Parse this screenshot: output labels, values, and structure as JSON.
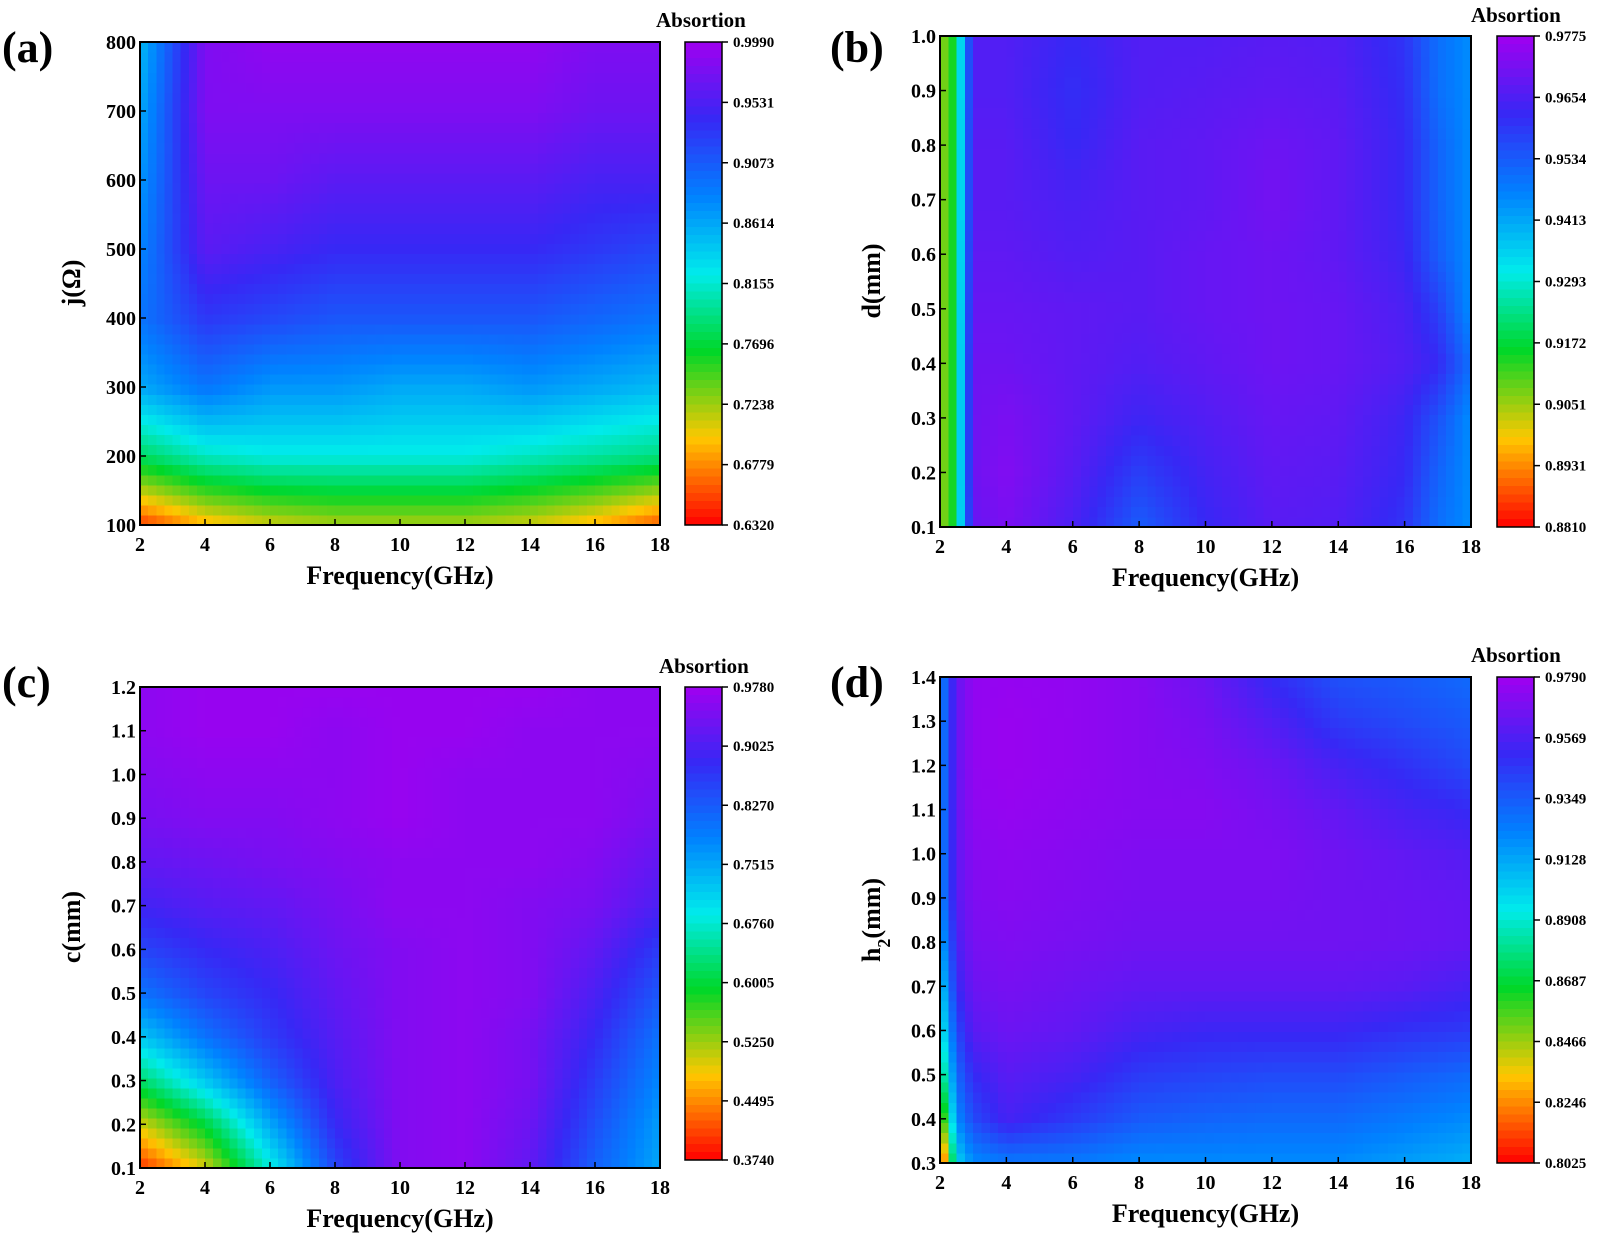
{
  "chart_data": [
    {
      "type": "heatmap",
      "panel_label": "(a)",
      "xlabel": "Frequency(GHz)",
      "ylabel": "j(Ω)",
      "xlim": [
        2,
        18
      ],
      "ylim": [
        100,
        800
      ],
      "x_ticks": [
        "2",
        "4",
        "6",
        "8",
        "10",
        "12",
        "14",
        "16",
        "18"
      ],
      "y_ticks": [
        "100",
        "200",
        "300",
        "400",
        "500",
        "600",
        "700",
        "800"
      ],
      "colorbar": {
        "title": "Absortion",
        "range": [
          0.632,
          0.999
        ],
        "ticks": [
          "0.6320",
          "0.6779",
          "0.7238",
          "0.7696",
          "0.8155",
          "0.8614",
          "0.9073",
          "0.9531",
          "0.9990"
        ]
      },
      "grid_x": [
        2,
        4,
        6,
        8,
        10,
        12,
        14,
        16,
        18
      ],
      "grid_y": [
        100,
        200,
        300,
        400,
        500,
        600,
        700,
        800
      ],
      "z": [
        [
          0.65,
          0.69,
          0.71,
          0.72,
          0.72,
          0.72,
          0.71,
          0.69,
          0.66
        ],
        [
          0.78,
          0.81,
          0.82,
          0.82,
          0.82,
          0.82,
          0.81,
          0.8,
          0.79
        ],
        [
          0.86,
          0.89,
          0.87,
          0.87,
          0.86,
          0.86,
          0.87,
          0.86,
          0.85
        ],
        [
          0.89,
          0.93,
          0.92,
          0.91,
          0.91,
          0.91,
          0.91,
          0.9,
          0.89
        ],
        [
          0.88,
          0.96,
          0.95,
          0.94,
          0.94,
          0.94,
          0.94,
          0.93,
          0.92
        ],
        [
          0.87,
          0.97,
          0.97,
          0.96,
          0.96,
          0.96,
          0.96,
          0.95,
          0.95
        ],
        [
          0.86,
          0.98,
          0.98,
          0.98,
          0.98,
          0.98,
          0.98,
          0.97,
          0.97
        ],
        [
          0.85,
          0.98,
          0.99,
          0.99,
          0.99,
          0.99,
          0.99,
          0.98,
          0.98
        ]
      ]
    },
    {
      "type": "heatmap",
      "panel_label": "(b)",
      "xlabel": "Frequency(GHz)",
      "ylabel": "d(mm)",
      "xlim": [
        2,
        18
      ],
      "ylim": [
        0.1,
        1.0
      ],
      "x_ticks": [
        "2",
        "4",
        "6",
        "8",
        "10",
        "12",
        "14",
        "16",
        "18"
      ],
      "y_ticks": [
        "0.1",
        "0.2",
        "0.3",
        "0.4",
        "0.5",
        "0.6",
        "0.7",
        "0.8",
        "0.9",
        "1.0"
      ],
      "colorbar": {
        "title": "Absortion",
        "range": [
          0.881,
          0.9775
        ],
        "ticks": [
          "0.8810",
          "0.8931",
          "0.9051",
          "0.9172",
          "0.9293",
          "0.9413",
          "0.9534",
          "0.9654",
          "0.9775"
        ]
      },
      "grid_x": [
        2,
        2.4,
        3,
        4,
        6,
        8,
        10,
        12,
        14,
        16,
        17,
        18
      ],
      "grid_y": [
        0.1,
        0.2,
        0.3,
        0.4,
        0.5,
        0.6,
        0.7,
        0.8,
        0.9,
        1.0
      ],
      "z": [
        [
          0.905,
          0.915,
          0.969,
          0.972,
          0.965,
          0.953,
          0.962,
          0.967,
          0.966,
          0.96,
          0.95,
          0.945
        ],
        [
          0.905,
          0.915,
          0.97,
          0.973,
          0.967,
          0.958,
          0.964,
          0.968,
          0.967,
          0.962,
          0.952,
          0.945
        ],
        [
          0.905,
          0.915,
          0.97,
          0.972,
          0.968,
          0.963,
          0.966,
          0.969,
          0.968,
          0.963,
          0.955,
          0.945
        ],
        [
          0.905,
          0.915,
          0.97,
          0.97,
          0.968,
          0.966,
          0.968,
          0.97,
          0.969,
          0.966,
          0.962,
          0.95
        ],
        [
          0.905,
          0.915,
          0.969,
          0.969,
          0.968,
          0.967,
          0.969,
          0.97,
          0.969,
          0.965,
          0.958,
          0.945
        ],
        [
          0.905,
          0.915,
          0.968,
          0.968,
          0.966,
          0.967,
          0.969,
          0.97,
          0.968,
          0.963,
          0.953,
          0.945
        ],
        [
          0.905,
          0.915,
          0.967,
          0.967,
          0.965,
          0.967,
          0.968,
          0.971,
          0.968,
          0.962,
          0.952,
          0.945
        ],
        [
          0.905,
          0.915,
          0.967,
          0.967,
          0.962,
          0.967,
          0.968,
          0.97,
          0.968,
          0.962,
          0.952,
          0.945
        ],
        [
          0.905,
          0.915,
          0.966,
          0.966,
          0.961,
          0.966,
          0.967,
          0.968,
          0.967,
          0.961,
          0.95,
          0.945
        ],
        [
          0.905,
          0.915,
          0.966,
          0.966,
          0.962,
          0.966,
          0.966,
          0.967,
          0.966,
          0.96,
          0.95,
          0.945
        ]
      ]
    },
    {
      "type": "heatmap",
      "panel_label": "(c)",
      "xlabel": "Frequency(GHz)",
      "ylabel": "c(mm)",
      "xlim": [
        2,
        18
      ],
      "ylim": [
        0.1,
        1.2
      ],
      "x_ticks": [
        "2",
        "4",
        "6",
        "8",
        "10",
        "12",
        "14",
        "16",
        "18"
      ],
      "y_ticks": [
        "0.1",
        "0.2",
        "0.3",
        "0.4",
        "0.5",
        "0.6",
        "0.7",
        "0.8",
        "0.9",
        "1.0",
        "1.1",
        "1.2"
      ],
      "colorbar": {
        "title": "Absortion",
        "range": [
          0.374,
          0.978
        ],
        "ticks": [
          "0.3740",
          "0.4495",
          "0.5250",
          "0.6005",
          "0.6760",
          "0.7515",
          "0.8270",
          "0.9025",
          "0.9780"
        ]
      },
      "grid_x": [
        2,
        4,
        6,
        8,
        10,
        12,
        14,
        16,
        18
      ],
      "grid_y": [
        0.1,
        0.2,
        0.3,
        0.4,
        0.5,
        0.6,
        0.7,
        0.8,
        0.9,
        1.0,
        1.1,
        1.2
      ],
      "z": [
        [
          0.4,
          0.5,
          0.68,
          0.85,
          0.95,
          0.96,
          0.92,
          0.82,
          0.75
        ],
        [
          0.5,
          0.6,
          0.75,
          0.88,
          0.95,
          0.96,
          0.93,
          0.84,
          0.76
        ],
        [
          0.62,
          0.72,
          0.82,
          0.9,
          0.95,
          0.96,
          0.94,
          0.86,
          0.78
        ],
        [
          0.72,
          0.8,
          0.86,
          0.91,
          0.95,
          0.96,
          0.94,
          0.88,
          0.8
        ],
        [
          0.8,
          0.85,
          0.88,
          0.92,
          0.95,
          0.96,
          0.95,
          0.9,
          0.83
        ],
        [
          0.85,
          0.88,
          0.9,
          0.93,
          0.95,
          0.96,
          0.95,
          0.92,
          0.86
        ],
        [
          0.89,
          0.91,
          0.92,
          0.94,
          0.96,
          0.96,
          0.95,
          0.94,
          0.9
        ],
        [
          0.92,
          0.93,
          0.94,
          0.95,
          0.96,
          0.96,
          0.96,
          0.95,
          0.92
        ],
        [
          0.94,
          0.95,
          0.95,
          0.96,
          0.97,
          0.96,
          0.96,
          0.96,
          0.94
        ],
        [
          0.95,
          0.96,
          0.96,
          0.96,
          0.97,
          0.96,
          0.96,
          0.96,
          0.95
        ],
        [
          0.96,
          0.97,
          0.97,
          0.96,
          0.97,
          0.97,
          0.96,
          0.96,
          0.96
        ],
        [
          0.96,
          0.97,
          0.97,
          0.97,
          0.97,
          0.97,
          0.97,
          0.96,
          0.96
        ]
      ]
    },
    {
      "type": "heatmap",
      "panel_label": "(d)",
      "xlabel": "Frequency(GHz)",
      "ylabel": "h2(mm)",
      "xlim": [
        2,
        18
      ],
      "ylim": [
        0.3,
        1.4
      ],
      "x_ticks": [
        "2",
        "4",
        "6",
        "8",
        "10",
        "12",
        "14",
        "16",
        "18"
      ],
      "y_ticks": [
        "0.3",
        "0.4",
        "0.5",
        "0.6",
        "0.7",
        "0.8",
        "0.9",
        "1.0",
        "1.1",
        "1.2",
        "1.3",
        "1.4"
      ],
      "colorbar": {
        "title": "Absortion",
        "range": [
          0.8025,
          0.979
        ],
        "ticks": [
          "0.8025",
          "0.8246",
          "0.8466",
          "0.8687",
          "0.8908",
          "0.9128",
          "0.9349",
          "0.9569",
          "0.9790"
        ]
      },
      "grid_x": [
        2,
        2.5,
        3,
        4,
        6,
        8,
        10,
        12,
        14,
        16,
        18
      ],
      "grid_y": [
        0.3,
        0.4,
        0.5,
        0.6,
        0.7,
        0.8,
        0.9,
        1.0,
        1.1,
        1.2,
        1.3,
        1.4
      ],
      "z": [
        [
          0.8,
          0.9,
          0.92,
          0.925,
          0.925,
          0.92,
          0.92,
          0.92,
          0.92,
          0.915,
          0.91
        ],
        [
          0.84,
          0.92,
          0.94,
          0.955,
          0.945,
          0.935,
          0.932,
          0.93,
          0.93,
          0.925,
          0.92
        ],
        [
          0.87,
          0.93,
          0.95,
          0.96,
          0.955,
          0.945,
          0.942,
          0.94,
          0.94,
          0.935,
          0.93
        ],
        [
          0.89,
          0.94,
          0.96,
          0.965,
          0.962,
          0.955,
          0.952,
          0.952,
          0.952,
          0.948,
          0.945
        ],
        [
          0.9,
          0.95,
          0.965,
          0.968,
          0.965,
          0.962,
          0.962,
          0.962,
          0.962,
          0.96,
          0.955
        ],
        [
          0.91,
          0.955,
          0.968,
          0.97,
          0.968,
          0.966,
          0.966,
          0.966,
          0.966,
          0.965,
          0.963
        ],
        [
          0.92,
          0.96,
          0.97,
          0.972,
          0.97,
          0.968,
          0.968,
          0.968,
          0.966,
          0.965,
          0.963
        ],
        [
          0.92,
          0.962,
          0.972,
          0.974,
          0.972,
          0.97,
          0.97,
          0.97,
          0.966,
          0.962,
          0.958
        ],
        [
          0.92,
          0.963,
          0.974,
          0.976,
          0.974,
          0.972,
          0.972,
          0.968,
          0.962,
          0.955,
          0.95
        ],
        [
          0.92,
          0.963,
          0.975,
          0.977,
          0.975,
          0.972,
          0.97,
          0.965,
          0.955,
          0.948,
          0.94
        ],
        [
          0.92,
          0.963,
          0.975,
          0.977,
          0.975,
          0.972,
          0.968,
          0.958,
          0.945,
          0.94,
          0.935
        ],
        [
          0.92,
          0.963,
          0.975,
          0.976,
          0.975,
          0.972,
          0.965,
          0.95,
          0.938,
          0.935,
          0.93
        ]
      ]
    }
  ]
}
